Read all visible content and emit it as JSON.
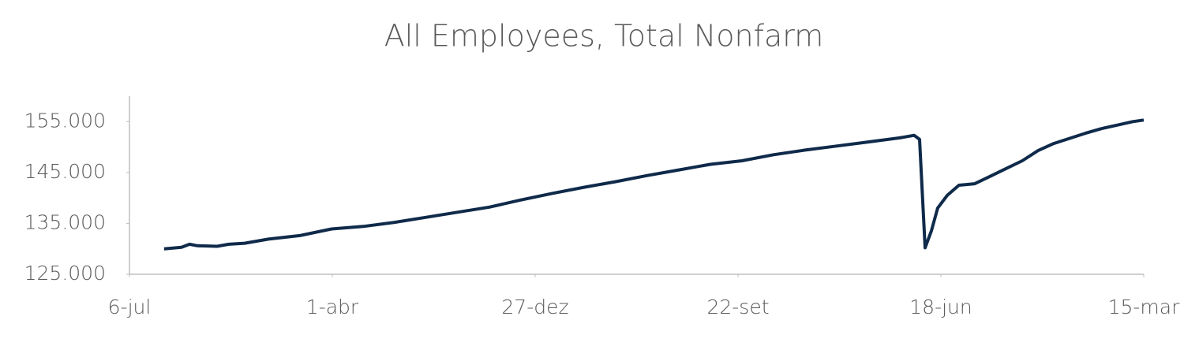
{
  "chart_data": {
    "type": "line",
    "title": "All Employees, Total Nonfarm",
    "x": [
      171,
      257,
      296,
      335,
      432,
      490,
      568,
      685,
      840,
      996,
      1152,
      1307,
      1463,
      1619,
      1774,
      1930,
      2086,
      2241,
      2397,
      2553,
      2708,
      2864,
      3019,
      3175,
      3331,
      3486,
      3642,
      3798,
      3868,
      3895,
      3922,
      3953,
      3984,
      4031,
      4089,
      4167,
      4245,
      4323,
      4401,
      4479,
      4556,
      4634,
      4712,
      4790,
      4868,
      4946,
      5000
    ],
    "series": [
      {
        "name": "All Employees, Total Nonfarm",
        "color": "#0f2a4a",
        "values": [
          130000,
          130300,
          130900,
          130600,
          130500,
          130900,
          131100,
          131900,
          132600,
          133900,
          134400,
          135200,
          136200,
          137200,
          138200,
          139600,
          140900,
          142100,
          143200,
          144400,
          145500,
          146600,
          147300,
          148500,
          149400,
          150200,
          151000,
          151800,
          152300,
          151500,
          130200,
          133500,
          138000,
          140500,
          142500,
          142800,
          144300,
          145800,
          147300,
          149300,
          150700,
          151700,
          152700,
          153600,
          154300,
          155000,
          155300
        ]
      }
    ],
    "xlim": [
      0,
      5000
    ],
    "xticks": [
      {
        "value": 0,
        "label": "6-jul"
      },
      {
        "value": 1000,
        "label": "1-abr"
      },
      {
        "value": 2000,
        "label": "27-dez"
      },
      {
        "value": 3000,
        "label": "22-set"
      },
      {
        "value": 4000,
        "label": "18-jun"
      },
      {
        "value": 5000,
        "label": "15-mar"
      }
    ],
    "ylim": [
      125000,
      160000
    ],
    "yticks": [
      {
        "value": 125000,
        "label": "125.000"
      },
      {
        "value": 135000,
        "label": "135.000"
      },
      {
        "value": 145000,
        "label": "145.000"
      },
      {
        "value": 155000,
        "label": "155.000"
      }
    ],
    "grid": false
  }
}
